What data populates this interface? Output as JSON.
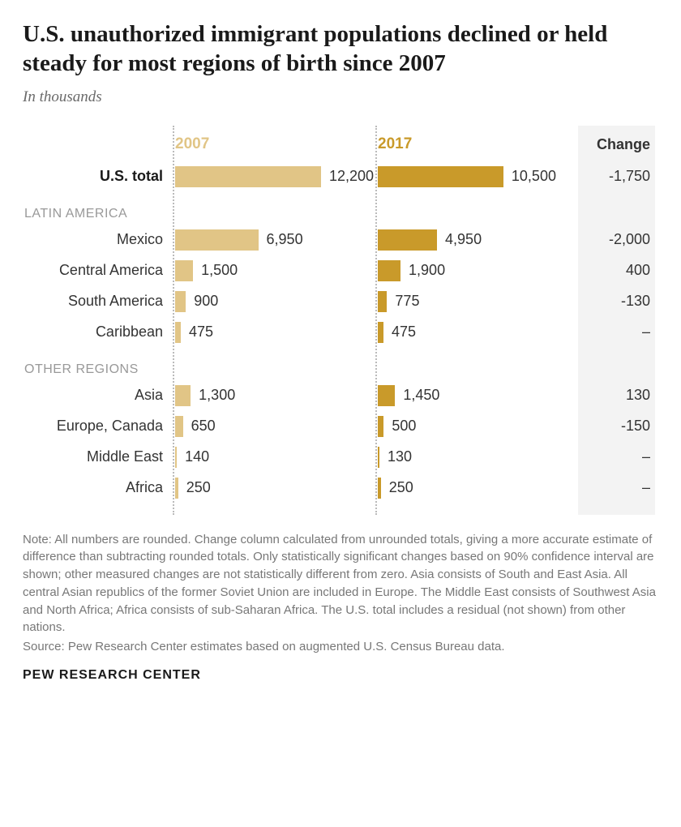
{
  "title": "U.S. unauthorized immigrant populations declined or held steady for most regions of birth since 2007",
  "subtitle": "In thousands",
  "year_a": {
    "label": "2007",
    "color": "#e1c586",
    "label_color": "#e1c586"
  },
  "year_b": {
    "label": "2017",
    "color": "#c99a2a",
    "label_color": "#c99a2a"
  },
  "change_header": "Change",
  "change_bg_color": "#f3f3f3",
  "grid_color": "#bbbbbb",
  "max_value": 12200,
  "bar_col_width": 250,
  "label_col_width": 185,
  "change_col_width": 95,
  "sections": [
    {
      "label": "",
      "rows": [
        {
          "label": "U.S. total",
          "bold": true,
          "a": 12200,
          "a_disp": "12,200",
          "b": 10500,
          "b_disp": "10,500",
          "change": "-1,750"
        }
      ]
    },
    {
      "label": "LATIN AMERICA",
      "rows": [
        {
          "label": "Mexico",
          "a": 6950,
          "a_disp": "6,950",
          "b": 4950,
          "b_disp": "4,950",
          "change": "-2,000"
        },
        {
          "label": "Central America",
          "a": 1500,
          "a_disp": "1,500",
          "b": 1900,
          "b_disp": "1,900",
          "change": "400"
        },
        {
          "label": "South America",
          "a": 900,
          "a_disp": "900",
          "b": 775,
          "b_disp": "775",
          "change": "-130"
        },
        {
          "label": "Caribbean",
          "a": 475,
          "a_disp": "475",
          "b": 475,
          "b_disp": "475",
          "change": "–"
        }
      ]
    },
    {
      "label": "OTHER REGIONS",
      "rows": [
        {
          "label": "Asia",
          "a": 1300,
          "a_disp": "1,300",
          "b": 1450,
          "b_disp": "1,450",
          "change": "130"
        },
        {
          "label": "Europe, Canada",
          "a": 650,
          "a_disp": "650",
          "b": 500,
          "b_disp": "500",
          "change": "-150"
        },
        {
          "label": "Middle East",
          "a": 140,
          "a_disp": "140",
          "b": 130,
          "b_disp": "130",
          "change": "–"
        },
        {
          "label": "Africa",
          "a": 250,
          "a_disp": "250",
          "b": 250,
          "b_disp": "250",
          "change": "–"
        }
      ]
    }
  ],
  "note": "Note: All numbers are rounded. Change column calculated from unrounded totals, giving a more accurate estimate of difference than subtracting rounded totals. Only statistically significant changes based on 90% confidence interval are shown; other measured changes are not statistically different from zero. Asia consists of South and East Asia. All central Asian republics of the former Soviet Union are included in Europe. The Middle East consists of Southwest Asia and North Africa; Africa consists of sub-Saharan Africa. The U.S. total includes a residual (not shown) from other nations.",
  "source": "Source: Pew Research Center estimates based on augmented U.S. Census Bureau data.",
  "attribution": "PEW RESEARCH CENTER"
}
